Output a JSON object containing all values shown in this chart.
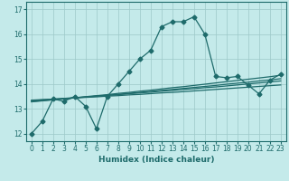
{
  "xlabel": "Humidex (Indice chaleur)",
  "xlim": [
    -0.5,
    23.5
  ],
  "ylim": [
    11.7,
    17.3
  ],
  "yticks": [
    12,
    13,
    14,
    15,
    16,
    17
  ],
  "xticks": [
    0,
    1,
    2,
    3,
    4,
    5,
    6,
    7,
    8,
    9,
    10,
    11,
    12,
    13,
    14,
    15,
    16,
    17,
    18,
    19,
    20,
    21,
    22,
    23
  ],
  "bg_color": "#c4eaea",
  "grid_color": "#9dc8c8",
  "line_color": "#1e6b6b",
  "main_series": [
    12.0,
    12.5,
    13.4,
    13.3,
    13.5,
    13.1,
    12.2,
    13.5,
    14.0,
    14.5,
    15.0,
    15.35,
    16.3,
    16.5,
    16.5,
    16.7,
    16.0,
    14.3,
    14.25,
    14.3,
    13.95,
    13.6,
    14.15,
    14.4
  ],
  "linear_series": [
    [
      13.35,
      13.37,
      13.39,
      13.41,
      13.44,
      13.46,
      13.48,
      13.51,
      13.53,
      13.56,
      13.58,
      13.61,
      13.64,
      13.66,
      13.69,
      13.72,
      13.75,
      13.78,
      13.81,
      13.84,
      13.87,
      13.9,
      13.93,
      13.96
    ],
    [
      13.33,
      13.36,
      13.39,
      13.42,
      13.45,
      13.48,
      13.51,
      13.54,
      13.57,
      13.61,
      13.64,
      13.67,
      13.71,
      13.74,
      13.78,
      13.81,
      13.85,
      13.88,
      13.92,
      13.96,
      14.0,
      14.04,
      14.08,
      14.12
    ],
    [
      13.3,
      13.33,
      13.37,
      13.4,
      13.44,
      13.47,
      13.51,
      13.55,
      13.58,
      13.62,
      13.66,
      13.7,
      13.74,
      13.78,
      13.82,
      13.86,
      13.9,
      13.94,
      13.99,
      14.03,
      14.07,
      14.12,
      14.16,
      14.21
    ],
    [
      13.28,
      13.32,
      13.36,
      13.4,
      13.44,
      13.49,
      13.53,
      13.57,
      13.62,
      13.66,
      13.71,
      13.75,
      13.8,
      13.85,
      13.89,
      13.94,
      13.99,
      14.04,
      14.09,
      14.14,
      14.19,
      14.24,
      14.29,
      14.35
    ]
  ],
  "marker": "D",
  "marker_size": 2.5,
  "linewidth": 0.9
}
